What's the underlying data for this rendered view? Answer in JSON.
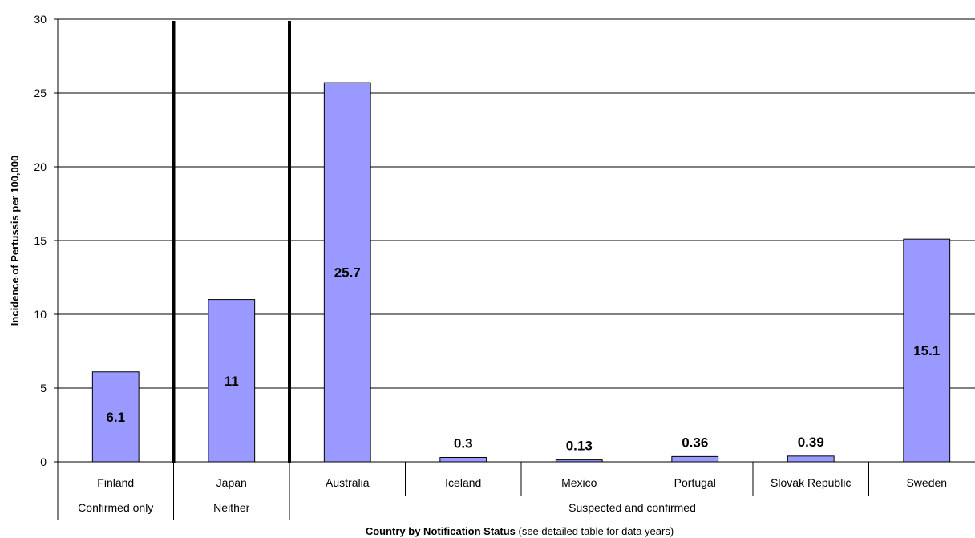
{
  "chart_data": {
    "type": "bar",
    "title": "",
    "categories": [
      "Finland",
      "Japan",
      "Australia",
      "Iceland",
      "Mexico",
      "Portugal",
      "Slovak Republic",
      "Sweden"
    ],
    "values": [
      6.1,
      11,
      25.7,
      0.3,
      0.13,
      0.36,
      0.39,
      15.1
    ],
    "data_labels": [
      "6.1",
      "11",
      "25.7",
      "0.3",
      "0.13",
      "0.36",
      "0.39",
      "15.1"
    ],
    "groups": [
      {
        "label": "Confirmed only",
        "start": 0,
        "end": 0
      },
      {
        "label": "Neither",
        "start": 1,
        "end": 1
      },
      {
        "label": "Suspected and confirmed",
        "start": 2,
        "end": 7
      }
    ],
    "ylabel": "Incidence of Pertussis per 100,000",
    "xlabel_bold": "Country by Notification Status",
    "xlabel_note": " (see detailed table for data years)",
    "ylim": [
      0,
      30
    ],
    "yticks": [
      0,
      5,
      10,
      15,
      20,
      25,
      30
    ],
    "grid": true,
    "legend": "none",
    "bar_color": "#9999ff",
    "bar_stroke": "#000000"
  }
}
